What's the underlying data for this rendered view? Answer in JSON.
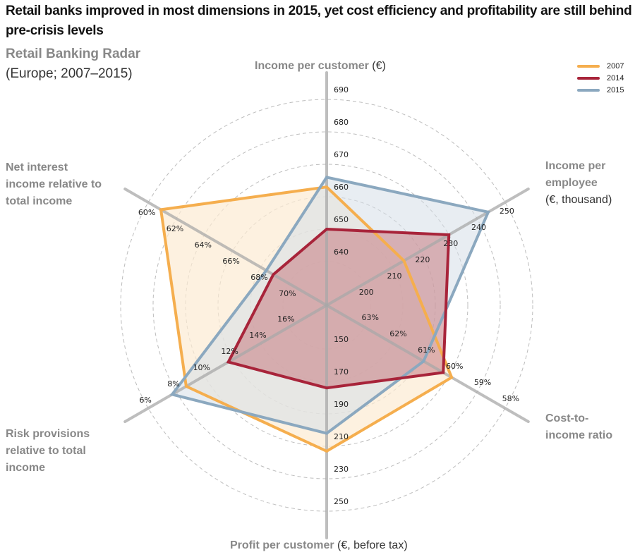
{
  "header": {
    "title": "Retail banks improved in most dimensions in 2015, yet cost efficiency and profitability are still behind pre-crisis levels",
    "subtitle": "Retail Banking Radar",
    "subnote": "(Europe; 2007–2015)"
  },
  "axes": {
    "top": {
      "bold": "Income per customer",
      "rest": " (€)"
    },
    "upper_right": {
      "bold": "Income per employee",
      "rest": "(€, thousand)"
    },
    "lower_right": {
      "bold": "Cost-to-income ratio",
      "rest": ""
    },
    "bottom": {
      "bold": "Profit per customer",
      "rest": " (€, before tax)"
    },
    "lower_left": {
      "bold": "Risk provisions relative to total income",
      "rest": ""
    },
    "upper_left": {
      "bold": "Net interest income relative to total income",
      "rest": ""
    }
  },
  "chart_data": {
    "type": "radar",
    "title": "Retail Banking Radar",
    "subtitle": "(Europe; 2007–2015)",
    "grid": true,
    "legend_position": "top-right",
    "categories": [
      "Income per customer (€)",
      "Income per employee (€, thousand)",
      "Cost-to-income ratio",
      "Profit per customer (€, before tax)",
      "Risk provisions relative to total income",
      "Net interest income relative to total income"
    ],
    "axis_ticks": [
      {
        "labels": [
          "640",
          "650",
          "660",
          "670",
          "680",
          "690"
        ],
        "min": 640,
        "step": 10
      },
      {
        "labels": [
          "200",
          "210",
          "220",
          "230",
          "240",
          "250"
        ],
        "min": 200,
        "step": 10
      },
      {
        "labels": [
          "63%",
          "62%",
          "61%",
          "60%",
          "59%",
          "58%"
        ],
        "min": 63,
        "step": -1
      },
      {
        "labels": [
          "150",
          "170",
          "190",
          "210",
          "230",
          "250"
        ],
        "min": 150,
        "step": 20
      },
      {
        "labels": [
          "16%",
          "14%",
          "12%",
          "10%",
          "8%",
          "6%"
        ],
        "min": 16,
        "step": -2
      },
      {
        "labels": [
          "70%",
          "68%",
          "66%",
          "64%",
          "62%",
          "60%"
        ],
        "min": 70,
        "step": -2
      }
    ],
    "series": [
      {
        "name": "2007",
        "color": "#F5AE4E",
        "fill": "#FCEBD3",
        "values": [
          663,
          214,
          59.9,
          213,
          8.7,
          60.9
        ]
      },
      {
        "name": "2014",
        "color": "#A8243A",
        "fill": "#C9858A",
        "values": [
          650,
          230,
          60.2,
          174,
          11.7,
          68.9
        ]
      },
      {
        "name": "2015",
        "color": "#8BA8BF",
        "fill": "#D5DFE8",
        "values": [
          666,
          244,
          60.9,
          202,
          7.7,
          68.4
        ]
      }
    ]
  }
}
